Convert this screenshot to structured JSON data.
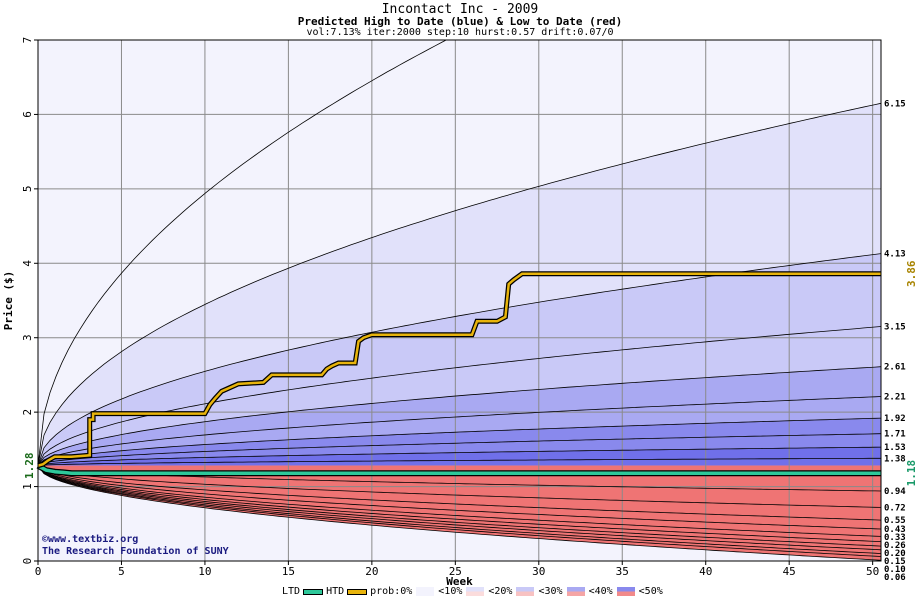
{
  "header": {
    "title": "Incontact Inc - 2009",
    "subtitle": "Predicted High to Date (blue) &  Low to Date (red)",
    "params": "vol:7.13% iter:2000 step:10 hurst:0.57 drift:0.07/0"
  },
  "credits": {
    "site": "©www.textbiz.org",
    "org": "The Research Foundation of SUNY"
  },
  "legend": {
    "ltd": "LTD",
    "htd": "HTD",
    "prob": "prob:0%",
    "p10": "<10%",
    "p20": "<20%",
    "p30": "<30%",
    "p40": "<40%",
    "p50": "<50%"
  },
  "chart_data": {
    "type": "area",
    "xlabel": "Week",
    "ylabel": "Price ($)",
    "xlim": [
      0,
      50.5
    ],
    "ylim": [
      0,
      7
    ],
    "xticks": [
      0,
      5,
      10,
      15,
      20,
      25,
      30,
      35,
      40,
      45,
      50
    ],
    "yticks": [
      0,
      1,
      2,
      3,
      4,
      5,
      6,
      7
    ],
    "grid": true,
    "start_price": 1.28,
    "start_label": "1.28",
    "colors": {
      "htd": "#e8b40c",
      "ltd": "#2ec89a",
      "p0": "#f3f3fd",
      "p10": "#e1e1fa",
      "p20": "#c9c9f7",
      "p30": "#a9a9f2",
      "p40": "#8989ed",
      "p50": "#7070ea",
      "r0": "#fdf0f0",
      "r10": "#fbdcdc",
      "r20": "#f8c2c2",
      "r30": "#f5a5a5",
      "r40": "#f28a8a",
      "r50": "#ef7474"
    },
    "high_percentiles": [
      {
        "label": "",
        "end": 9.5
      },
      {
        "label": "6.15",
        "end": 6.15
      },
      {
        "label": "4.13",
        "end": 4.13
      },
      {
        "label": "3.15",
        "end": 3.15
      },
      {
        "label": "2.61",
        "end": 2.61
      },
      {
        "label": "2.21",
        "end": 2.21
      },
      {
        "label": "1.92",
        "end": 1.92
      },
      {
        "label": "1.71",
        "end": 1.71
      },
      {
        "label": "1.53",
        "end": 1.53
      },
      {
        "label": "1.38",
        "end": 1.38
      }
    ],
    "low_percentiles": [
      {
        "label": "0.94",
        "end": 0.94
      },
      {
        "label": "0.72",
        "end": 0.72
      },
      {
        "label": "0.55",
        "end": 0.55
      },
      {
        "label": "0.43",
        "end": 0.43
      },
      {
        "label": "0.33",
        "end": 0.33
      },
      {
        "label": "0.26",
        "end": 0.26
      },
      {
        "label": "0.20",
        "end": 0.2
      },
      {
        "label": "0.15",
        "end": 0.15
      },
      {
        "label": "0.10",
        "end": 0.1
      },
      {
        "label": "0.06",
        "end": 0.06
      },
      {
        "label": "",
        "end": 0.01
      }
    ],
    "htd_path": {
      "x": [
        0,
        0.3,
        0.6,
        1,
        2,
        3.1,
        3.1,
        3.3,
        3.3,
        10,
        10.3,
        10.6,
        11,
        11.5,
        12,
        13.5,
        14,
        15,
        17,
        17.3,
        17.6,
        18,
        19,
        19.2,
        19.5,
        20,
        26,
        26.3,
        27.5,
        28,
        28.2,
        28.5,
        29,
        50.5
      ],
      "y": [
        1.28,
        1.3,
        1.35,
        1.4,
        1.4,
        1.42,
        1.9,
        1.9,
        1.98,
        1.98,
        2.1,
        2.18,
        2.28,
        2.33,
        2.38,
        2.4,
        2.5,
        2.5,
        2.5,
        2.58,
        2.62,
        2.66,
        2.66,
        2.95,
        3.0,
        3.04,
        3.04,
        3.22,
        3.22,
        3.28,
        3.72,
        3.78,
        3.86,
        3.86
      ]
    },
    "htd_end_label": "3.86",
    "ltd_path": {
      "x": [
        0,
        0.5,
        1,
        1.5,
        2,
        50.5
      ],
      "y": [
        1.28,
        1.22,
        1.2,
        1.19,
        1.18,
        1.18
      ]
    },
    "ltd_end_label": "1.18"
  }
}
